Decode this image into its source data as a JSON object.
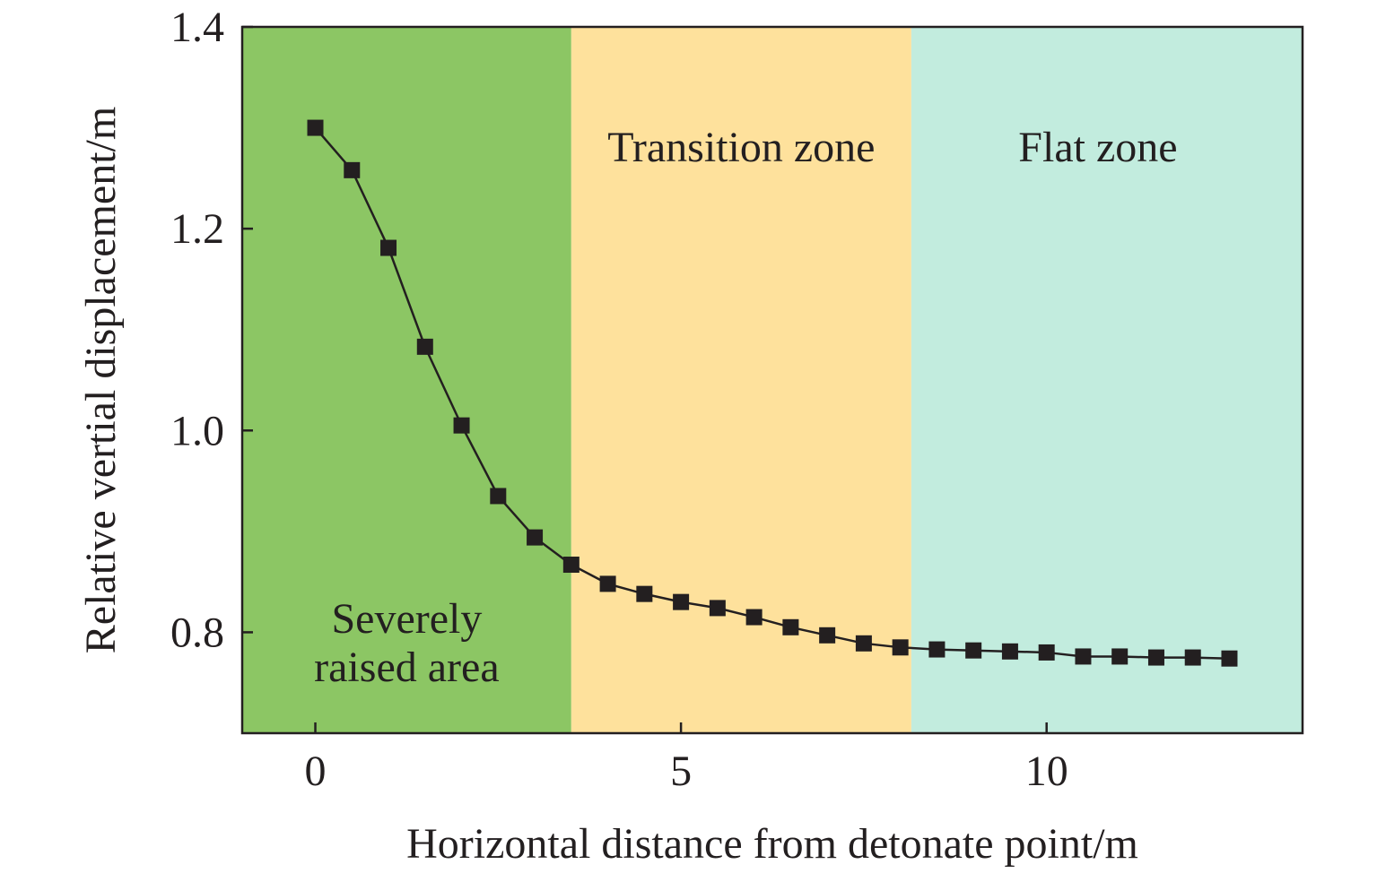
{
  "chart_data": {
    "type": "line",
    "title": "",
    "xlabel": "Horizontal distance from detonate point/m",
    "ylabel": "Relative vertial displacement/m",
    "xlim": [
      -1,
      13.5
    ],
    "ylim": [
      0.7,
      1.4
    ],
    "xticks": [
      0,
      5,
      10
    ],
    "xtick_labels": [
      "0",
      "5",
      "10"
    ],
    "yticks": [
      0.8,
      1.0,
      1.2,
      1.4
    ],
    "ytick_labels": [
      "0.8",
      "1.0",
      "1.2",
      "1.4"
    ],
    "grid": false,
    "legend": false,
    "zones": [
      {
        "label_lines": [
          "Severely",
          "raised area"
        ],
        "x_start": -1,
        "x_end": 3.5,
        "color": "#8cc664"
      },
      {
        "label_lines": [
          "Transition zone"
        ],
        "x_start": 3.5,
        "x_end": 8.15,
        "color": "#fee19c"
      },
      {
        "label_lines": [
          "Flat zone"
        ],
        "x_start": 8.15,
        "x_end": 13.5,
        "color": "#c2ecde"
      }
    ],
    "series": [
      {
        "marker": "square",
        "color": "#231f20",
        "x": [
          0,
          0.5,
          1,
          1.5,
          2,
          2.5,
          3,
          3.5,
          4,
          4.5,
          5,
          5.5,
          6,
          6.5,
          7,
          7.5,
          8,
          8.5,
          9,
          9.5,
          10,
          10.5,
          11,
          11.5,
          12,
          12.5
        ],
        "y": [
          1.3,
          1.258,
          1.181,
          1.083,
          1.005,
          0.935,
          0.894,
          0.867,
          0.848,
          0.838,
          0.83,
          0.824,
          0.815,
          0.805,
          0.797,
          0.789,
          0.785,
          0.783,
          0.782,
          0.781,
          0.78,
          0.776,
          0.776,
          0.775,
          0.775,
          0.774
        ]
      }
    ]
  }
}
